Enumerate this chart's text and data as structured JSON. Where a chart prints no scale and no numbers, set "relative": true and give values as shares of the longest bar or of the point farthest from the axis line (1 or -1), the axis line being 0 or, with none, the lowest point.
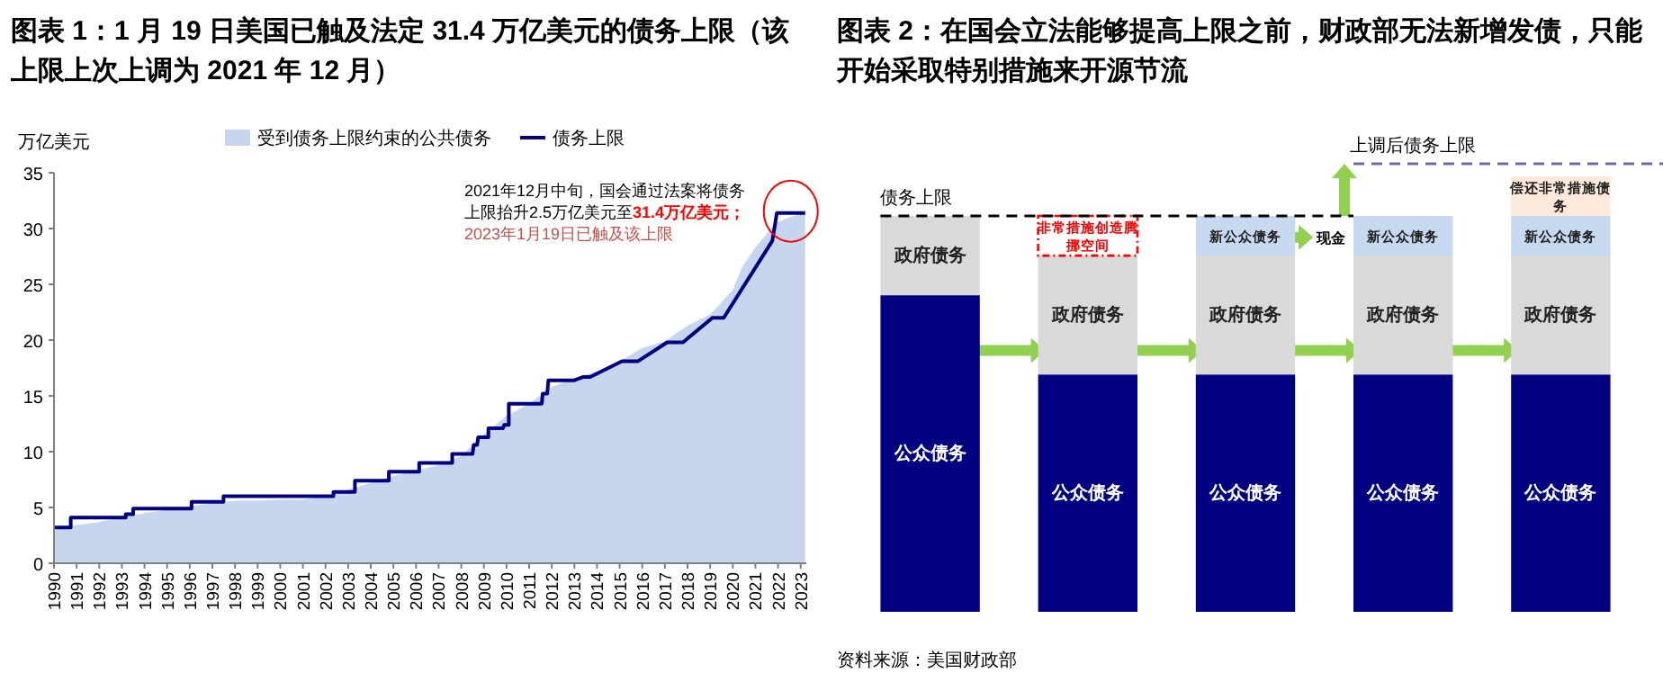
{
  "chart_data": [
    {
      "type": "line",
      "title": "图表 1：1 月 19 日美国已触及法定 31.4 万亿美元的债务上限（该上限上次上调为 2021 年 12 月）",
      "ylabel": "万亿美元",
      "legend": "top",
      "xlim": [
        1990,
        2023.25
      ],
      "xticks": [
        1990,
        1991,
        1992,
        1993,
        1994,
        1995,
        1996,
        1997,
        1998,
        1999,
        2000,
        2001,
        2002,
        2003,
        2004,
        2005,
        2006,
        2007,
        2008,
        2009,
        2010,
        2011,
        2012,
        2013,
        2014,
        2015,
        2016,
        2017,
        2018,
        2019,
        2020,
        2021,
        2022,
        2023
      ],
      "ylim": [
        0,
        35
      ],
      "yticks": [
        0,
        5,
        10,
        15,
        20,
        25,
        30,
        35
      ],
      "series": [
        {
          "type": "area",
          "name": "受到债务上限约束的公共债务",
          "color": "#c6d6ee",
          "x": [
            1990,
            1991,
            1992,
            1993,
            1994,
            1995,
            1996,
            1997,
            1998,
            1999,
            2000,
            2001,
            2002,
            2003,
            2004,
            2005,
            2006,
            2007,
            2008,
            2009,
            2010,
            2011,
            2012,
            2013,
            2014,
            2015,
            2016,
            2017,
            2018,
            2019,
            2020,
            2020.4,
            2021,
            2021.9,
            2022.5,
            2023.2
          ],
          "values": [
            3.1,
            3.4,
            3.7,
            4.1,
            4.5,
            4.8,
            5.1,
            5.4,
            5.6,
            5.6,
            5.7,
            5.7,
            6.0,
            6.6,
            7.2,
            7.8,
            8.3,
            8.8,
            9.6,
            11.6,
            13.2,
            14.3,
            15.8,
            16.6,
            17.2,
            18.1,
            19.3,
            19.9,
            21.3,
            22.3,
            24.5,
            26.5,
            28.3,
            30.5,
            31.0,
            31.4
          ]
        },
        {
          "type": "line",
          "name": "债务上限",
          "color": "#000080",
          "x": [
            1990,
            1990.74,
            1990.74,
            1993.17,
            1993.17,
            1993.5,
            1993.5,
            1996.08,
            1996.08,
            1997.49,
            1997.49,
            2002.35,
            2002.35,
            2003.3,
            2003.3,
            2004.8,
            2004.8,
            2006.14,
            2006.14,
            2007.6,
            2007.6,
            2008.5,
            2008.55,
            2008.7,
            2008.75,
            2009.2,
            2009.2,
            2009.84,
            2009.9,
            2010.1,
            2010.1,
            2011.56,
            2011.6,
            2011.8,
            2011.85,
            2013.0,
            2013.4,
            2013.7,
            2015.1,
            2015.8,
            2017.1,
            2017.8,
            2019.1,
            2019.6,
            2021.75,
            2021.95,
            2023.2
          ],
          "values": [
            3.2,
            3.2,
            4.1,
            4.1,
            4.4,
            4.4,
            4.9,
            4.9,
            5.5,
            5.5,
            6.0,
            6.0,
            6.4,
            6.4,
            7.4,
            7.4,
            8.2,
            8.2,
            9.0,
            9.0,
            9.8,
            9.8,
            10.6,
            10.6,
            11.3,
            11.3,
            12.1,
            12.1,
            12.4,
            12.4,
            14.3,
            14.3,
            15.2,
            15.2,
            16.4,
            16.4,
            16.7,
            16.7,
            18.1,
            18.1,
            19.8,
            19.8,
            22.0,
            22.0,
            28.9,
            31.4,
            31.4
          ]
        }
      ],
      "annotations": [
        "2021年12月中旬，国会通过法案将债务上限抬升2.5万亿美元至",
        "31.4万亿美元；2023年1月19日已触及该上限"
      ]
    },
    {
      "type": "bar",
      "stacked": true,
      "relative": true,
      "title": "图表 2：在国会立法能够提高上限之前，财政部无法新增发债，只能开始采取特别措施来开源节流",
      "categories": [
        null,
        null,
        null,
        null,
        null
      ],
      "series": [
        {
          "name": "公众债务",
          "color": "#000080",
          "values": [
            0.727,
            0.545,
            0.545,
            0.545,
            0.545
          ]
        },
        {
          "name": "政府债务",
          "color": "#d9d9d9",
          "values": [
            0.182,
            0.273,
            0.273,
            0.273,
            0.273
          ]
        },
        {
          "name": "非常措施创造腾挪空间",
          "color": "#ff0000",
          "line_style": "dashed",
          "values": [
            null,
            0.091,
            null,
            null,
            null
          ]
        },
        {
          "name": "新公众债务",
          "color": "#c6d9f0",
          "values": [
            null,
            null,
            0.091,
            0.091,
            0.091
          ]
        },
        {
          "name": "偿还非常措施债务",
          "color": "#fde9d9",
          "values": [
            null,
            null,
            null,
            null,
            0.091
          ]
        }
      ],
      "ref_lines": [
        {
          "axis": "y",
          "value": 0.909,
          "label": "债务上限",
          "color": "#000000",
          "line_style": "dashed"
        },
        {
          "axis": "y",
          "value": 1.029,
          "label": "上调后债务上限",
          "color": "#6a6aa8",
          "line_style": "dashed"
        }
      ],
      "annotations": [
        "现金",
        "资料来源：美国财政部"
      ]
    }
  ]
}
